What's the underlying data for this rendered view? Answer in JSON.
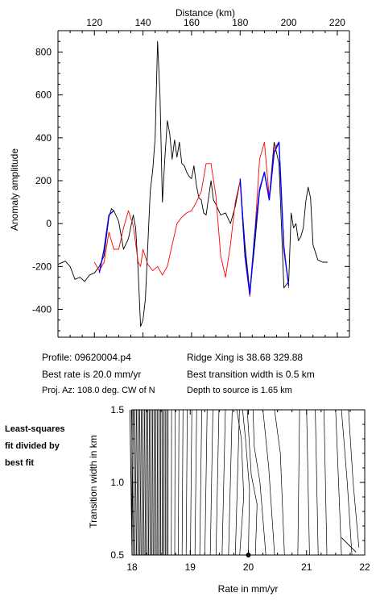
{
  "chart_data": [
    {
      "type": "line",
      "xlabel": "Distance (km)",
      "ylabel": "Anomaly amplitude",
      "xlim": [
        105,
        225
      ],
      "ylim": [
        -530,
        900
      ],
      "xticks": [
        120,
        140,
        160,
        180,
        200,
        220
      ],
      "yticks": [
        -400,
        -200,
        0,
        200,
        400,
        600,
        800
      ],
      "grid": false,
      "series": [
        {
          "color": "#000000",
          "x": [
            105,
            108,
            110,
            112,
            114,
            116,
            118,
            120,
            122,
            124,
            126,
            127,
            128,
            130,
            132,
            134,
            136,
            137,
            138,
            139,
            140,
            141,
            142,
            143,
            144,
            145,
            146,
            147,
            148,
            149,
            150,
            151,
            152,
            153,
            154,
            155,
            156,
            157,
            158,
            159,
            160,
            161,
            162,
            163,
            164,
            165,
            166,
            167,
            168,
            169,
            170,
            172,
            174,
            176,
            178,
            180,
            182,
            184,
            186,
            188,
            190,
            192,
            194,
            196,
            198,
            200,
            201,
            202,
            203,
            204,
            205,
            206,
            207,
            208,
            209,
            210,
            212,
            214,
            216
          ],
          "y": [
            -190,
            -175,
            -200,
            -260,
            -250,
            -270,
            -240,
            -230,
            -200,
            -150,
            30,
            70,
            60,
            10,
            -120,
            -70,
            40,
            -20,
            -220,
            -480,
            -450,
            -350,
            -100,
            150,
            250,
            400,
            850,
            600,
            100,
            300,
            480,
            420,
            300,
            390,
            310,
            380,
            280,
            270,
            240,
            220,
            210,
            270,
            180,
            120,
            110,
            50,
            40,
            120,
            200,
            110,
            90,
            40,
            50,
            0,
            80,
            200,
            -100,
            -320,
            -100,
            150,
            240,
            120,
            380,
            280,
            -300,
            -270,
            50,
            -20,
            0,
            -80,
            -60,
            -20,
            100,
            170,
            120,
            -100,
            -170,
            -180,
            -180
          ]
        },
        {
          "color": "#ff0000",
          "x": [
            120,
            122,
            124,
            126,
            128,
            130,
            132,
            134,
            136,
            138,
            139,
            140,
            142,
            144,
            146,
            148,
            150,
            152,
            154,
            156,
            158,
            160,
            162,
            164,
            166,
            168,
            170,
            172,
            174,
            176,
            178,
            180,
            182,
            184,
            186,
            188,
            190,
            192,
            194,
            196,
            198,
            200
          ],
          "y": [
            -180,
            -220,
            -180,
            -40,
            -120,
            -120,
            -20,
            60,
            -10,
            -180,
            -200,
            -120,
            -190,
            -220,
            -200,
            -240,
            -200,
            -100,
            0,
            30,
            50,
            60,
            100,
            150,
            280,
            280,
            130,
            -150,
            -250,
            -100,
            100,
            200,
            -160,
            -340,
            -50,
            300,
            380,
            120,
            350,
            380,
            -100,
            -300
          ]
        },
        {
          "color": "#0000ff",
          "x": [
            122,
            124,
            126,
            128,
            180,
            182,
            184,
            186,
            188,
            190,
            192,
            194,
            196,
            198,
            200
          ],
          "y": [
            -230,
            -120,
            40,
            60,
            210,
            -150,
            -330,
            -50,
            160,
            240,
            110,
            330,
            380,
            -120,
            -290
          ]
        }
      ]
    },
    {
      "type": "contour",
      "xlabel": "Rate in mm/yr",
      "ylabel": "Transition width in km",
      "xlim": [
        18,
        22
      ],
      "ylim": [
        0.5,
        1.5
      ],
      "xticks": [
        18,
        19,
        20,
        21,
        22
      ],
      "yticks": [
        0.5,
        1.0,
        1.5
      ],
      "best_fit": {
        "x": 20,
        "y": 0.5
      }
    }
  ],
  "info": {
    "profile": "Profile: 09620004.p4",
    "best_rate": "Best rate is 20.0 mm/yr",
    "proj_az": "Proj. Az: 108.0 deg. CW of N",
    "ridge_xing": "Ridge Xing is 38.68 329.88",
    "best_transition": "Best transition width is 0.5 km",
    "depth": "Depth to source is    1.65 km"
  },
  "side_note": [
    "Least-squares",
    "fit divided by",
    "best fit"
  ]
}
